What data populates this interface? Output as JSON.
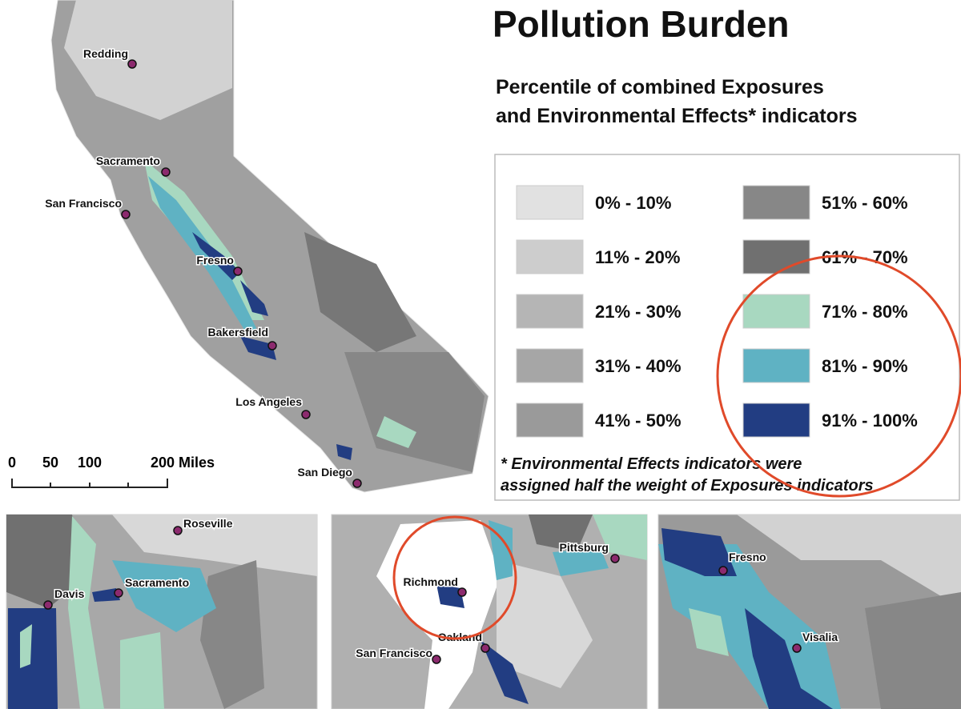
{
  "header": {
    "title": "Pollution Burden",
    "subtitle": [
      "Percentile of combined Exposures",
      "and Environmental Effects* indicators"
    ]
  },
  "legend": [
    {
      "label": "0% - 10%",
      "color": "#e1e1e1"
    },
    {
      "label": "11% - 20%",
      "color": "#cdcdcd"
    },
    {
      "label": "21% - 30%",
      "color": "#b5b5b5"
    },
    {
      "label": "31% - 40%",
      "color": "#a6a6a6"
    },
    {
      "label": "41% - 50%",
      "color": "#9a9a9a"
    },
    {
      "label": "51% - 60%",
      "color": "#878787"
    },
    {
      "label": "61% - 70%",
      "color": "#707070"
    },
    {
      "label": "71% - 80%",
      "color": "#a8d8c0"
    },
    {
      "label": "81% - 90%",
      "color": "#5fb2c3"
    },
    {
      "label": "91% - 100%",
      "color": "#223d82"
    }
  ],
  "footnote": [
    "* Environmental Effects indicators were",
    "assigned half the weight of Exposures indicators"
  ],
  "scale_bar": {
    "labels": [
      "0",
      "50",
      "100",
      "200 Miles"
    ]
  },
  "main_map": {
    "cities": [
      "Redding",
      "Sacramento",
      "San Francisco",
      "Fresno",
      "Bakersfield",
      "Los Angeles",
      "San Diego"
    ]
  },
  "insets": [
    {
      "cities": [
        "Roseville",
        "Davis",
        "Sacramento"
      ]
    },
    {
      "cities": [
        "Pittsburg",
        "Richmond",
        "Oakland",
        "San Francisco"
      ]
    },
    {
      "cities": [
        "Fresno",
        "Visalia"
      ]
    }
  ]
}
